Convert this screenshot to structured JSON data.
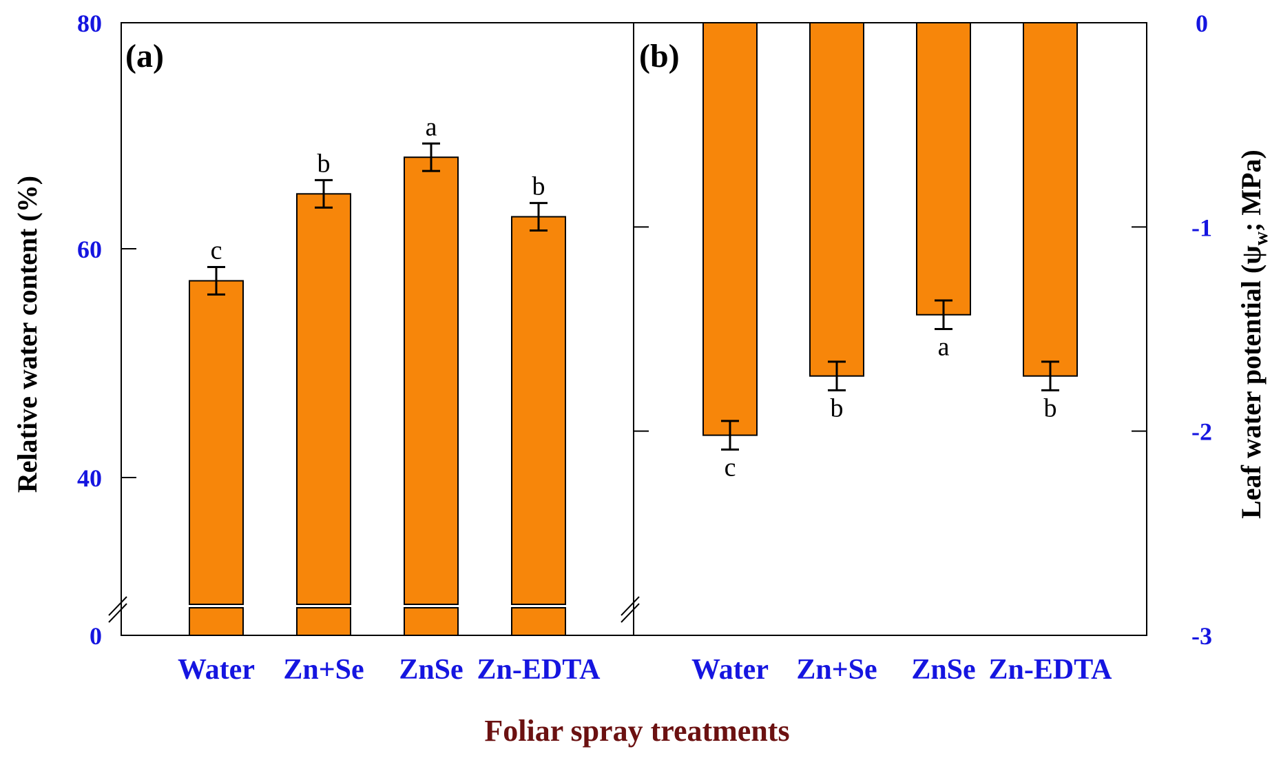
{
  "colors": {
    "bar": "#F7860A",
    "tick_text": "#1515E0",
    "xtitle": "#6B1111",
    "axis": "#000000"
  },
  "figure": {
    "xlabel": "Foliar spray treatments"
  },
  "chart_data": [
    {
      "panel": "(a)",
      "type": "bar",
      "categories": [
        "Water",
        "Zn+Se",
        "ZnSe",
        "Zn-EDTA"
      ],
      "values": [
        57.2,
        64.8,
        68.0,
        62.8
      ],
      "errors": [
        1.2,
        1.2,
        1.2,
        1.2
      ],
      "significance": [
        "c",
        "b",
        "a",
        "b"
      ],
      "ylabel": "Relative water content (%)",
      "ylim": [
        0,
        80
      ],
      "yticks": [
        "0",
        "40",
        "60",
        "80"
      ],
      "axis_break": true,
      "ylabel_side": "left"
    },
    {
      "panel": "(b)",
      "type": "bar",
      "categories": [
        "Water",
        "Zn+Se",
        "ZnSe",
        "Zn-EDTA"
      ],
      "values": [
        -2.02,
        -1.73,
        -1.43,
        -1.73
      ],
      "errors": [
        0.07,
        0.07,
        0.07,
        0.07
      ],
      "significance": [
        "c",
        "b",
        "a",
        "b"
      ],
      "ylabel": "Leaf water potential (ψ",
      "ylabel_sub": "w",
      "ylabel_tail": "; MPa)",
      "ylim": [
        -3,
        0
      ],
      "yticks": [
        "0",
        "-1",
        "-2",
        "-3"
      ],
      "axis_break": true,
      "ylabel_side": "right"
    }
  ]
}
